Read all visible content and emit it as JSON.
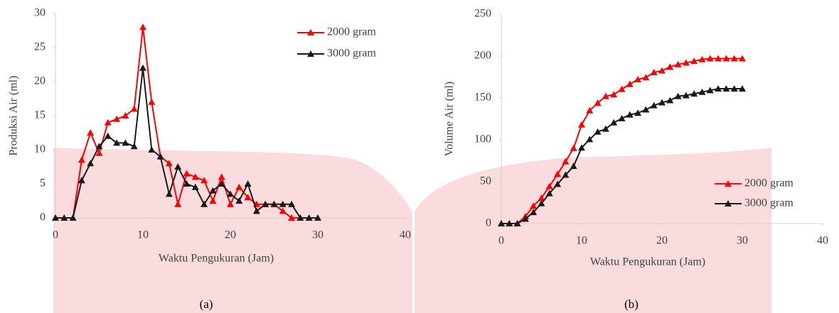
{
  "chart_data": [
    {
      "type": "line",
      "caption": "(a)",
      "x_label": "Waktu Pengukuran (Jam)",
      "y_label": "Produksi Air (ml)",
      "x": [
        0,
        1,
        2,
        3,
        4,
        5,
        6,
        7,
        8,
        9,
        10,
        11,
        12,
        13,
        14,
        15,
        16,
        17,
        18,
        19,
        20,
        21,
        22,
        23,
        24,
        25,
        26,
        27,
        28,
        29,
        30
      ],
      "series": [
        {
          "name": "2000 gram",
          "color": "#ff0000",
          "values": [
            0,
            0,
            0,
            8.5,
            12.5,
            9.5,
            14,
            14.5,
            15,
            16,
            28,
            17,
            9,
            8,
            2,
            6.5,
            6,
            5.5,
            2.5,
            6,
            2,
            4.5,
            3,
            2,
            2,
            2,
            1,
            0,
            0,
            0,
            0
          ]
        },
        {
          "name": "3000 gram",
          "color": "#1a1a1a",
          "values": [
            0,
            0,
            0,
            5.5,
            8,
            10.5,
            12,
            11,
            11,
            10.5,
            22,
            10,
            9,
            3.5,
            7.5,
            5,
            4.5,
            2,
            4,
            5,
            3.5,
            2.5,
            5,
            1,
            2,
            2,
            2,
            2,
            0,
            0,
            0
          ]
        }
      ],
      "xlim": [
        0,
        40
      ],
      "xticks": [
        0,
        10,
        20,
        30,
        40
      ],
      "ylim": [
        0,
        30
      ],
      "yticks": [
        0,
        5,
        10,
        15,
        20,
        25,
        30
      ],
      "legend": "upper right"
    },
    {
      "type": "line",
      "caption": "(b)",
      "x_label": "Waktu Pengukuran (Jam)",
      "y_label": "Volume Air (ml)",
      "x": [
        0,
        1,
        2,
        3,
        4,
        5,
        6,
        7,
        8,
        9,
        10,
        11,
        12,
        13,
        14,
        15,
        16,
        17,
        18,
        19,
        20,
        21,
        22,
        23,
        24,
        25,
        26,
        27,
        28,
        29,
        30
      ],
      "series": [
        {
          "name": "2000 gram",
          "color": "#ff0000",
          "values": [
            0,
            0,
            0,
            8.5,
            21,
            30.5,
            44.5,
            59,
            74,
            90,
            118,
            135,
            144,
            152,
            154,
            160.5,
            166.5,
            172,
            174.5,
            180.5,
            182.5,
            187,
            190,
            192,
            194,
            196,
            197,
            197,
            197,
            197,
            197
          ]
        },
        {
          "name": "3000 gram",
          "color": "#1a1a1a",
          "values": [
            0,
            0,
            0,
            5.5,
            13.5,
            24,
            36,
            47,
            58,
            68.5,
            90.5,
            100.5,
            109.5,
            113,
            120.5,
            125.5,
            130,
            132,
            136,
            141,
            144.5,
            147,
            152,
            153,
            155,
            157,
            159,
            161,
            161,
            161,
            161
          ]
        }
      ],
      "xlim": [
        0,
        40
      ],
      "xticks": [
        0,
        10,
        20,
        30,
        40
      ],
      "ylim": [
        0,
        250
      ],
      "yticks": [
        0,
        50,
        100,
        150,
        200,
        250
      ],
      "legend": "lower right"
    }
  ]
}
